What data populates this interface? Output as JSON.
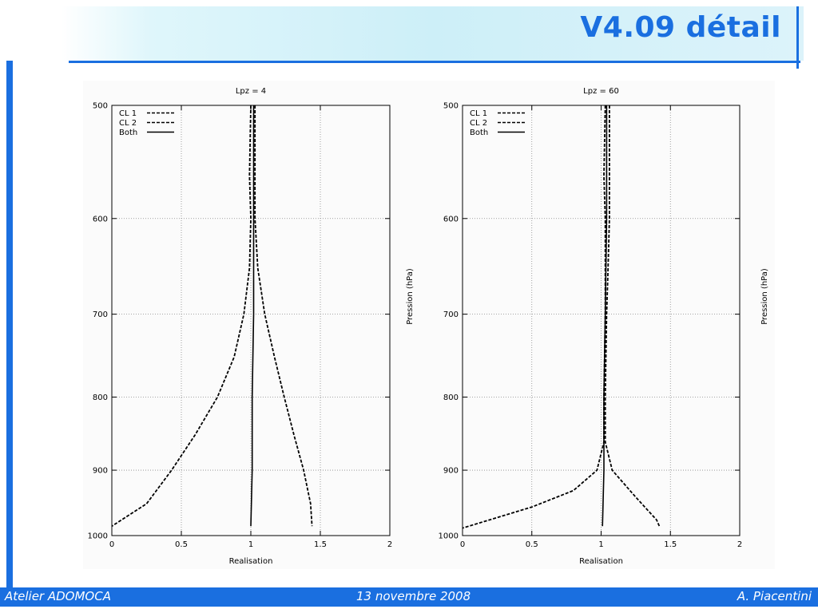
{
  "slide": {
    "title": "V4.09 détail",
    "accent_color": "#1a6fe0",
    "footer": {
      "left": "Atelier ADOMOCA",
      "center": "13 novembre 2008",
      "right": "A. Piacentini"
    }
  },
  "chart_data": [
    {
      "type": "line",
      "title": "Lpz = 4",
      "xlabel": "Realisation",
      "ylabel": "Pression (hPa)",
      "xlim": [
        0,
        2
      ],
      "ylim": [
        500,
        1000
      ],
      "y_reversed": true,
      "y_scale": "log",
      "xticks": [
        0,
        0.5,
        1,
        1.5,
        2
      ],
      "xtick_labels": [
        "0",
        "0.5",
        "1",
        "1.5",
        "2"
      ],
      "yticks": [
        500,
        600,
        700,
        800,
        900,
        1000
      ],
      "ytick_labels": [
        "500",
        "600",
        "700",
        "800",
        "900",
        "1000"
      ],
      "grid": true,
      "legend_position": "top-left",
      "series": [
        {
          "name": "CL 1",
          "style": "dashed",
          "points": [
            [
              1.0,
              500
            ],
            [
              0.99,
              560
            ],
            [
              1.0,
              600
            ],
            [
              0.99,
              650
            ],
            [
              0.95,
              700
            ],
            [
              0.88,
              750
            ],
            [
              0.76,
              800
            ],
            [
              0.6,
              850
            ],
            [
              0.43,
              900
            ],
            [
              0.25,
              950
            ],
            [
              0.0,
              985
            ]
          ]
        },
        {
          "name": "CL 2",
          "style": "dashed",
          "points": [
            [
              1.03,
              500
            ],
            [
              1.03,
              560
            ],
            [
              1.03,
              600
            ],
            [
              1.05,
              650
            ],
            [
              1.1,
              700
            ],
            [
              1.17,
              750
            ],
            [
              1.24,
              800
            ],
            [
              1.31,
              850
            ],
            [
              1.38,
              900
            ],
            [
              1.43,
              950
            ],
            [
              1.44,
              985
            ]
          ]
        },
        {
          "name": "Both",
          "style": "solid",
          "points": [
            [
              1.02,
              500
            ],
            [
              1.02,
              600
            ],
            [
              1.02,
              700
            ],
            [
              1.01,
              800
            ],
            [
              1.01,
              900
            ],
            [
              1.0,
              985
            ]
          ]
        }
      ]
    },
    {
      "type": "line",
      "title": "Lpz = 60",
      "xlabel": "Realisation",
      "ylabel": "Pression (hPa)",
      "xlim": [
        0,
        2
      ],
      "ylim": [
        500,
        1000
      ],
      "y_reversed": true,
      "y_scale": "log",
      "xticks": [
        0,
        0.5,
        1,
        1.5,
        2
      ],
      "xtick_labels": [
        "0",
        "0.5",
        "1",
        "1.5",
        "2"
      ],
      "yticks": [
        500,
        600,
        700,
        800,
        900,
        1000
      ],
      "ytick_labels": [
        "500",
        "600",
        "700",
        "800",
        "900",
        "1000"
      ],
      "grid": true,
      "legend_position": "top-left",
      "series": [
        {
          "name": "CL 1",
          "style": "dashed",
          "points": [
            [
              1.03,
              500
            ],
            [
              1.02,
              560
            ],
            [
              1.03,
              600
            ],
            [
              1.03,
              700
            ],
            [
              1.02,
              800
            ],
            [
              1.02,
              860
            ],
            [
              0.97,
              900
            ],
            [
              0.8,
              930
            ],
            [
              0.5,
              955
            ],
            [
              0.0,
              988
            ]
          ]
        },
        {
          "name": "CL 2",
          "style": "dashed",
          "points": [
            [
              1.06,
              500
            ],
            [
              1.06,
              560
            ],
            [
              1.06,
              600
            ],
            [
              1.05,
              650
            ],
            [
              1.04,
              700
            ],
            [
              1.03,
              800
            ],
            [
              1.03,
              860
            ],
            [
              1.08,
              900
            ],
            [
              1.25,
              940
            ],
            [
              1.4,
              975
            ],
            [
              1.42,
              985
            ]
          ]
        },
        {
          "name": "Both",
          "style": "solid",
          "points": [
            [
              1.04,
              500
            ],
            [
              1.04,
              600
            ],
            [
              1.03,
              700
            ],
            [
              1.02,
              800
            ],
            [
              1.02,
              900
            ],
            [
              1.01,
              985
            ]
          ]
        }
      ]
    }
  ]
}
